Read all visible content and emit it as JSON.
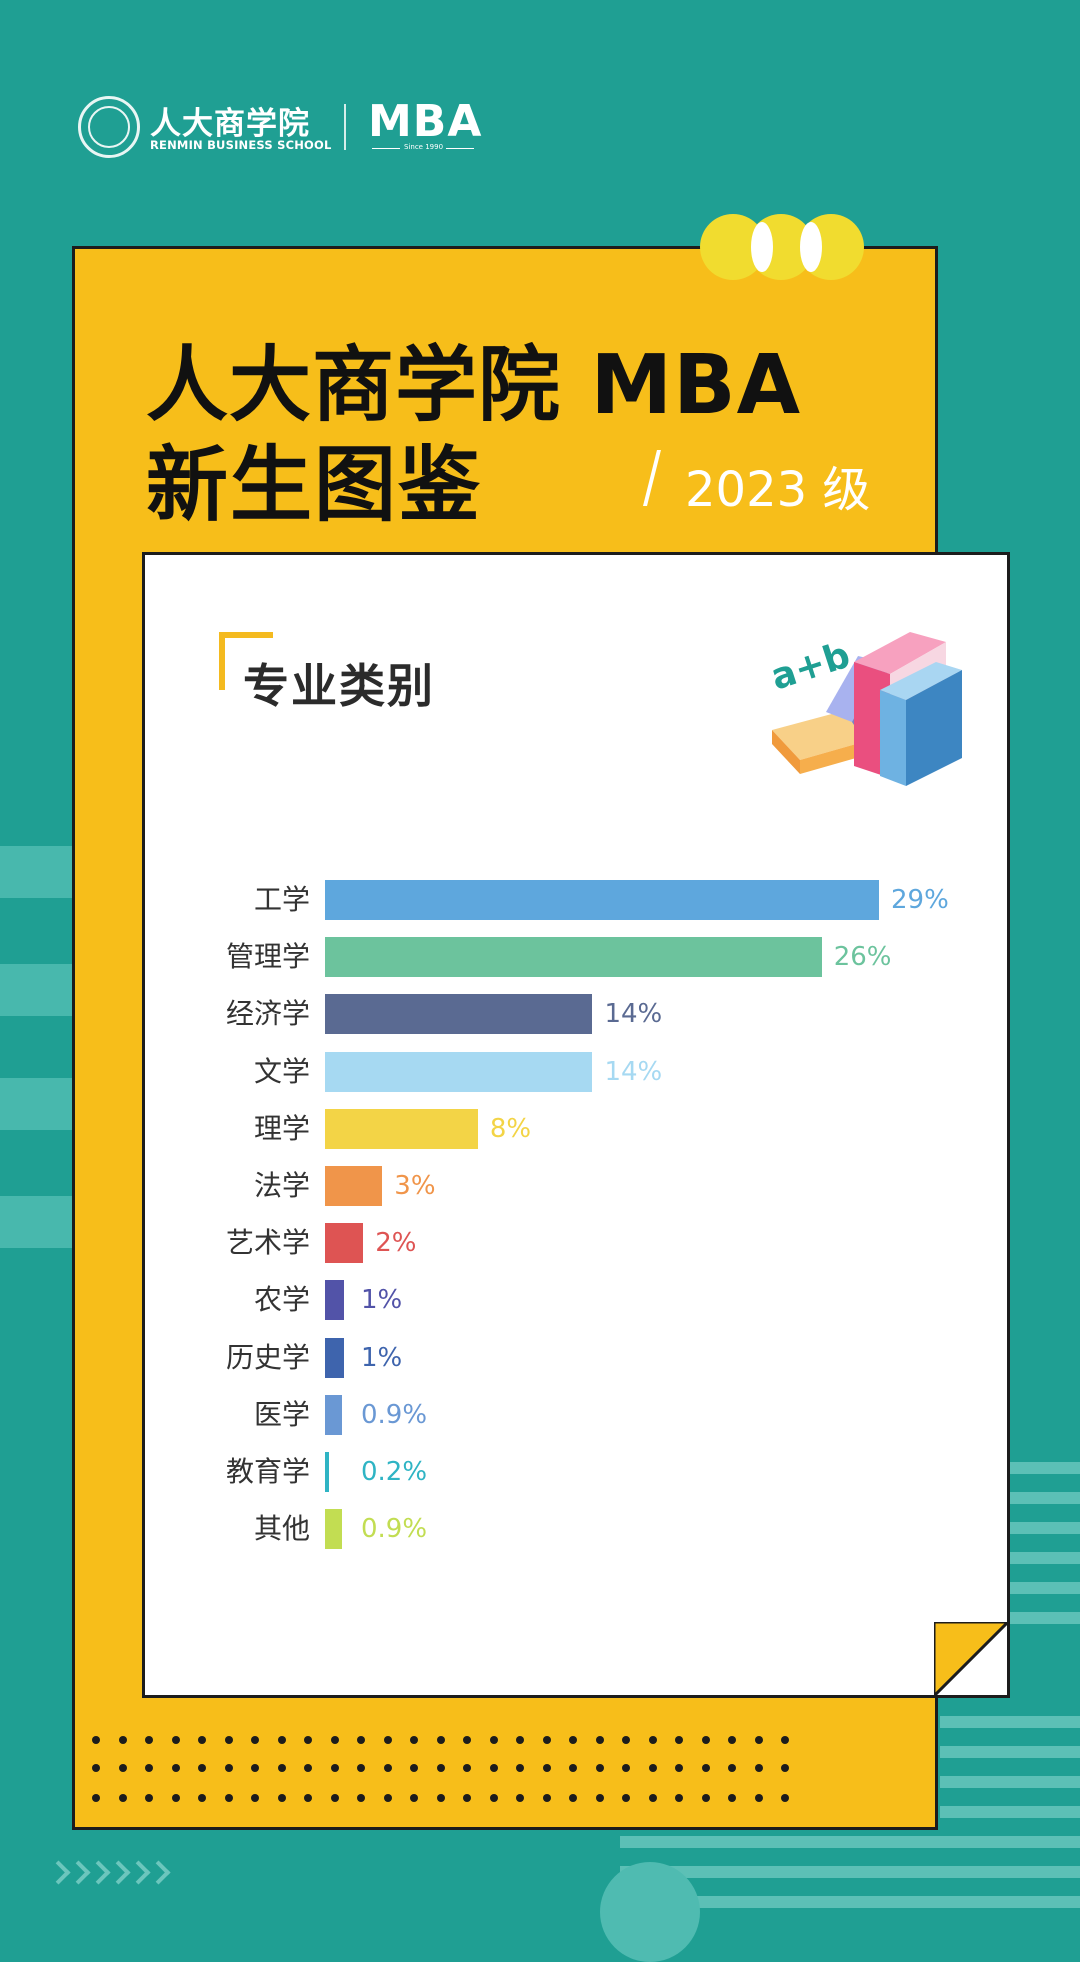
{
  "header": {
    "school_cn": "人大商学院",
    "school_en": "RENMIN BUSINESS SCHOOL",
    "program": "MBA",
    "since": "Since 1990"
  },
  "title": {
    "line1": "人大商学院 MBA",
    "line2": "新生图鉴",
    "year": "2023 级"
  },
  "section": {
    "title": "专业类别"
  },
  "colors": {
    "background": "#1f9f93",
    "card": "#f7be1a",
    "panel": "#ffffff"
  },
  "chart_data": {
    "type": "bar",
    "orientation": "horizontal",
    "categories": [
      "工学",
      "管理学",
      "经济学",
      "文学",
      "理学",
      "法学",
      "艺术学",
      "农学",
      "历史学",
      "医学",
      "教育学",
      "其他"
    ],
    "values": [
      29,
      26,
      14,
      14,
      8,
      3,
      2,
      1,
      1,
      0.9,
      0.2,
      0.9
    ],
    "labels": [
      "29%",
      "26%",
      "14%",
      "14%",
      "8%",
      "3%",
      "2%",
      "1%",
      "1%",
      "0.9%",
      "0.2%",
      "0.9%"
    ],
    "colors": [
      "#5ea7dd",
      "#6cc39d",
      "#5a6a92",
      "#a6d9f2",
      "#f3d446",
      "#f0954a",
      "#de5453",
      "#5253a8",
      "#3e64ad",
      "#6a98d4",
      "#2fb4c4",
      "#c2dd52"
    ],
    "grid": false,
    "legend": "none"
  }
}
